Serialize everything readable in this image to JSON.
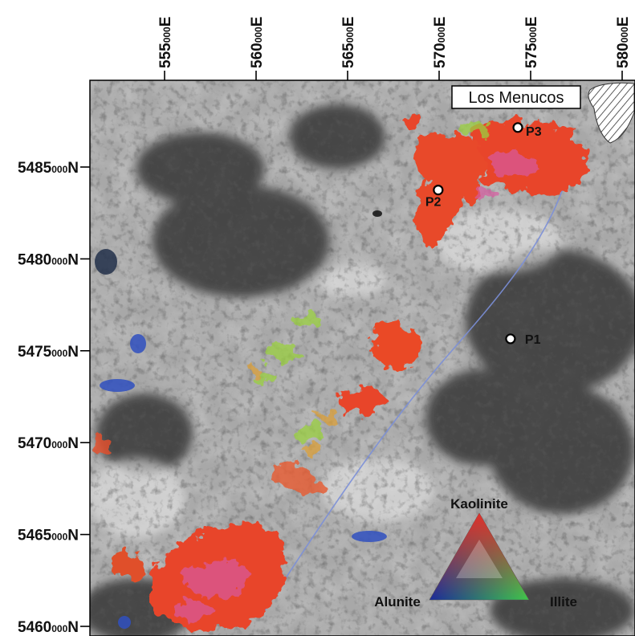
{
  "map": {
    "easting_ticks": [
      {
        "major": "555",
        "minor": "000",
        "suffix": "E",
        "value": 555000
      },
      {
        "major": "560",
        "minor": "000",
        "suffix": "E",
        "value": 560000
      },
      {
        "major": "565",
        "minor": "000",
        "suffix": "E",
        "value": 565000
      },
      {
        "major": "570",
        "minor": "000",
        "suffix": "E",
        "value": 570000
      },
      {
        "major": "575",
        "minor": "000",
        "suffix": "E",
        "value": 575000
      },
      {
        "major": "580",
        "minor": "000",
        "suffix": "E",
        "value": 580000
      }
    ],
    "northing_ticks": [
      {
        "major": "5485",
        "minor": "000",
        "suffix": "N",
        "value": 5485000
      },
      {
        "major": "5480",
        "minor": "000",
        "suffix": "N",
        "value": 5480000
      },
      {
        "major": "5475",
        "minor": "000",
        "suffix": "N",
        "value": 5475000
      },
      {
        "major": "5470",
        "minor": "000",
        "suffix": "N",
        "value": 5470000
      },
      {
        "major": "5465",
        "minor": "000",
        "suffix": "N",
        "value": 5465000
      },
      {
        "major": "5460",
        "minor": "000",
        "suffix": "N",
        "value": 5460000
      }
    ],
    "town_label": "Los Menucos",
    "points": [
      {
        "label": "P1",
        "e": 573900,
        "n": 5475650
      },
      {
        "label": "P2",
        "e": 569950,
        "n": 5483750
      },
      {
        "label": "P3",
        "e": 574300,
        "n": 5487150
      }
    ],
    "legend": {
      "top": "Kaolinite",
      "left": "Alunite",
      "right": "Illite",
      "colors": {
        "kaolinite": "#e0302a",
        "alunite": "#1a2a9a",
        "illite": "#3ec84a"
      }
    },
    "colors": {
      "alteration": "#e8442a",
      "background_light": "#c9c9c9",
      "background_dark": "#3a3a3a"
    }
  }
}
